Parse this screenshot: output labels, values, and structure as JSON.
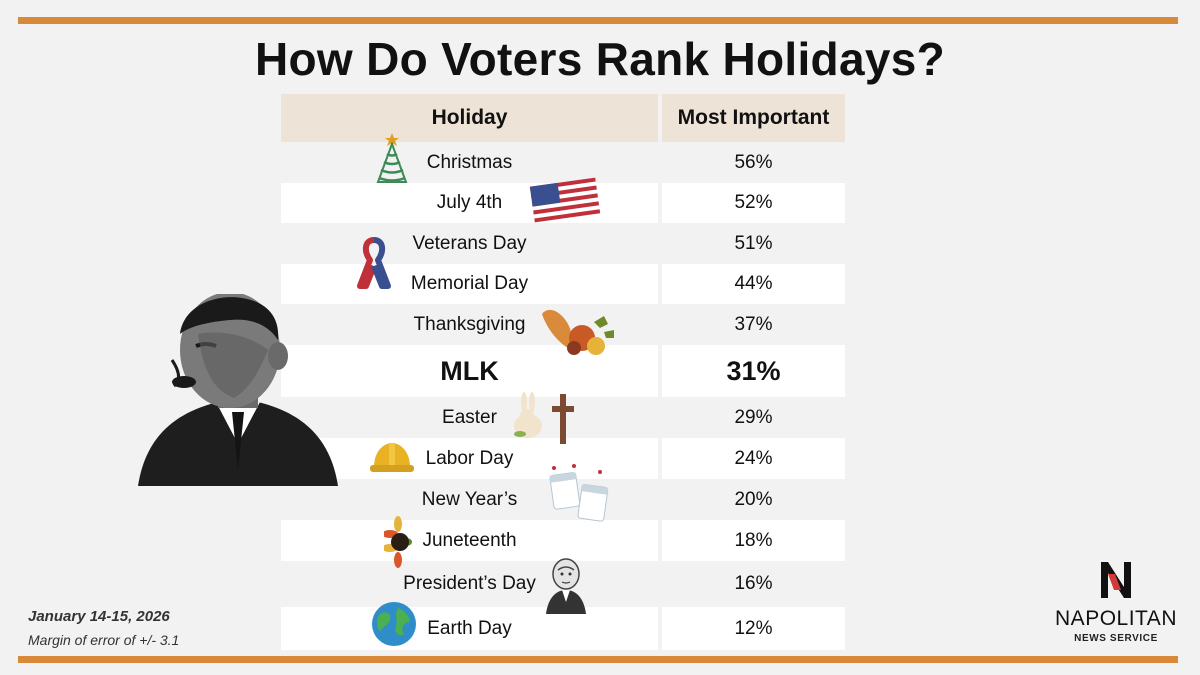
{
  "title": "How Do Voters Rank Holidays?",
  "chart_data": {
    "type": "table",
    "columns": [
      "Holiday",
      "Most Important"
    ],
    "rows": [
      {
        "holiday": "Christmas",
        "value": "56%",
        "icon": "christmas-tree-icon"
      },
      {
        "holiday": "July 4th",
        "value": "52%",
        "icon": "us-flag-icon"
      },
      {
        "holiday": "Veterans Day",
        "value": "51%",
        "icon": "ribbon-icon"
      },
      {
        "holiday": "Memorial Day",
        "value": "44%"
      },
      {
        "holiday": "Thanksgiving",
        "value": "37%",
        "icon": "cornucopia-icon"
      },
      {
        "holiday": "MLK",
        "value": "31%",
        "highlight": true
      },
      {
        "holiday": "Easter",
        "value": "29%",
        "icon": "bunny-cross-icon"
      },
      {
        "holiday": "Labor Day",
        "value": "24%",
        "icon": "hard-hat-icon"
      },
      {
        "holiday": "New Year’s",
        "value": "20%",
        "icon": "calendar-icon"
      },
      {
        "holiday": "Juneteenth",
        "value": "18%",
        "icon": "sunflower-icon"
      },
      {
        "holiday": "President’s Day",
        "value": "16%",
        "icon": "washington-portrait-icon"
      },
      {
        "holiday": "Earth Day",
        "value": "12%",
        "icon": "globe-icon"
      }
    ]
  },
  "footnote": {
    "date": "January 14-15, 2026",
    "margin": "Margin of error of +/- 3.1"
  },
  "logo": {
    "mark": "N",
    "name": "NAPOLITAN",
    "subtitle": "NEWS SERVICE"
  },
  "colors": {
    "accent": "#d9893a",
    "header_bg": "#eee3d7",
    "page_bg": "#f2f2f2"
  }
}
